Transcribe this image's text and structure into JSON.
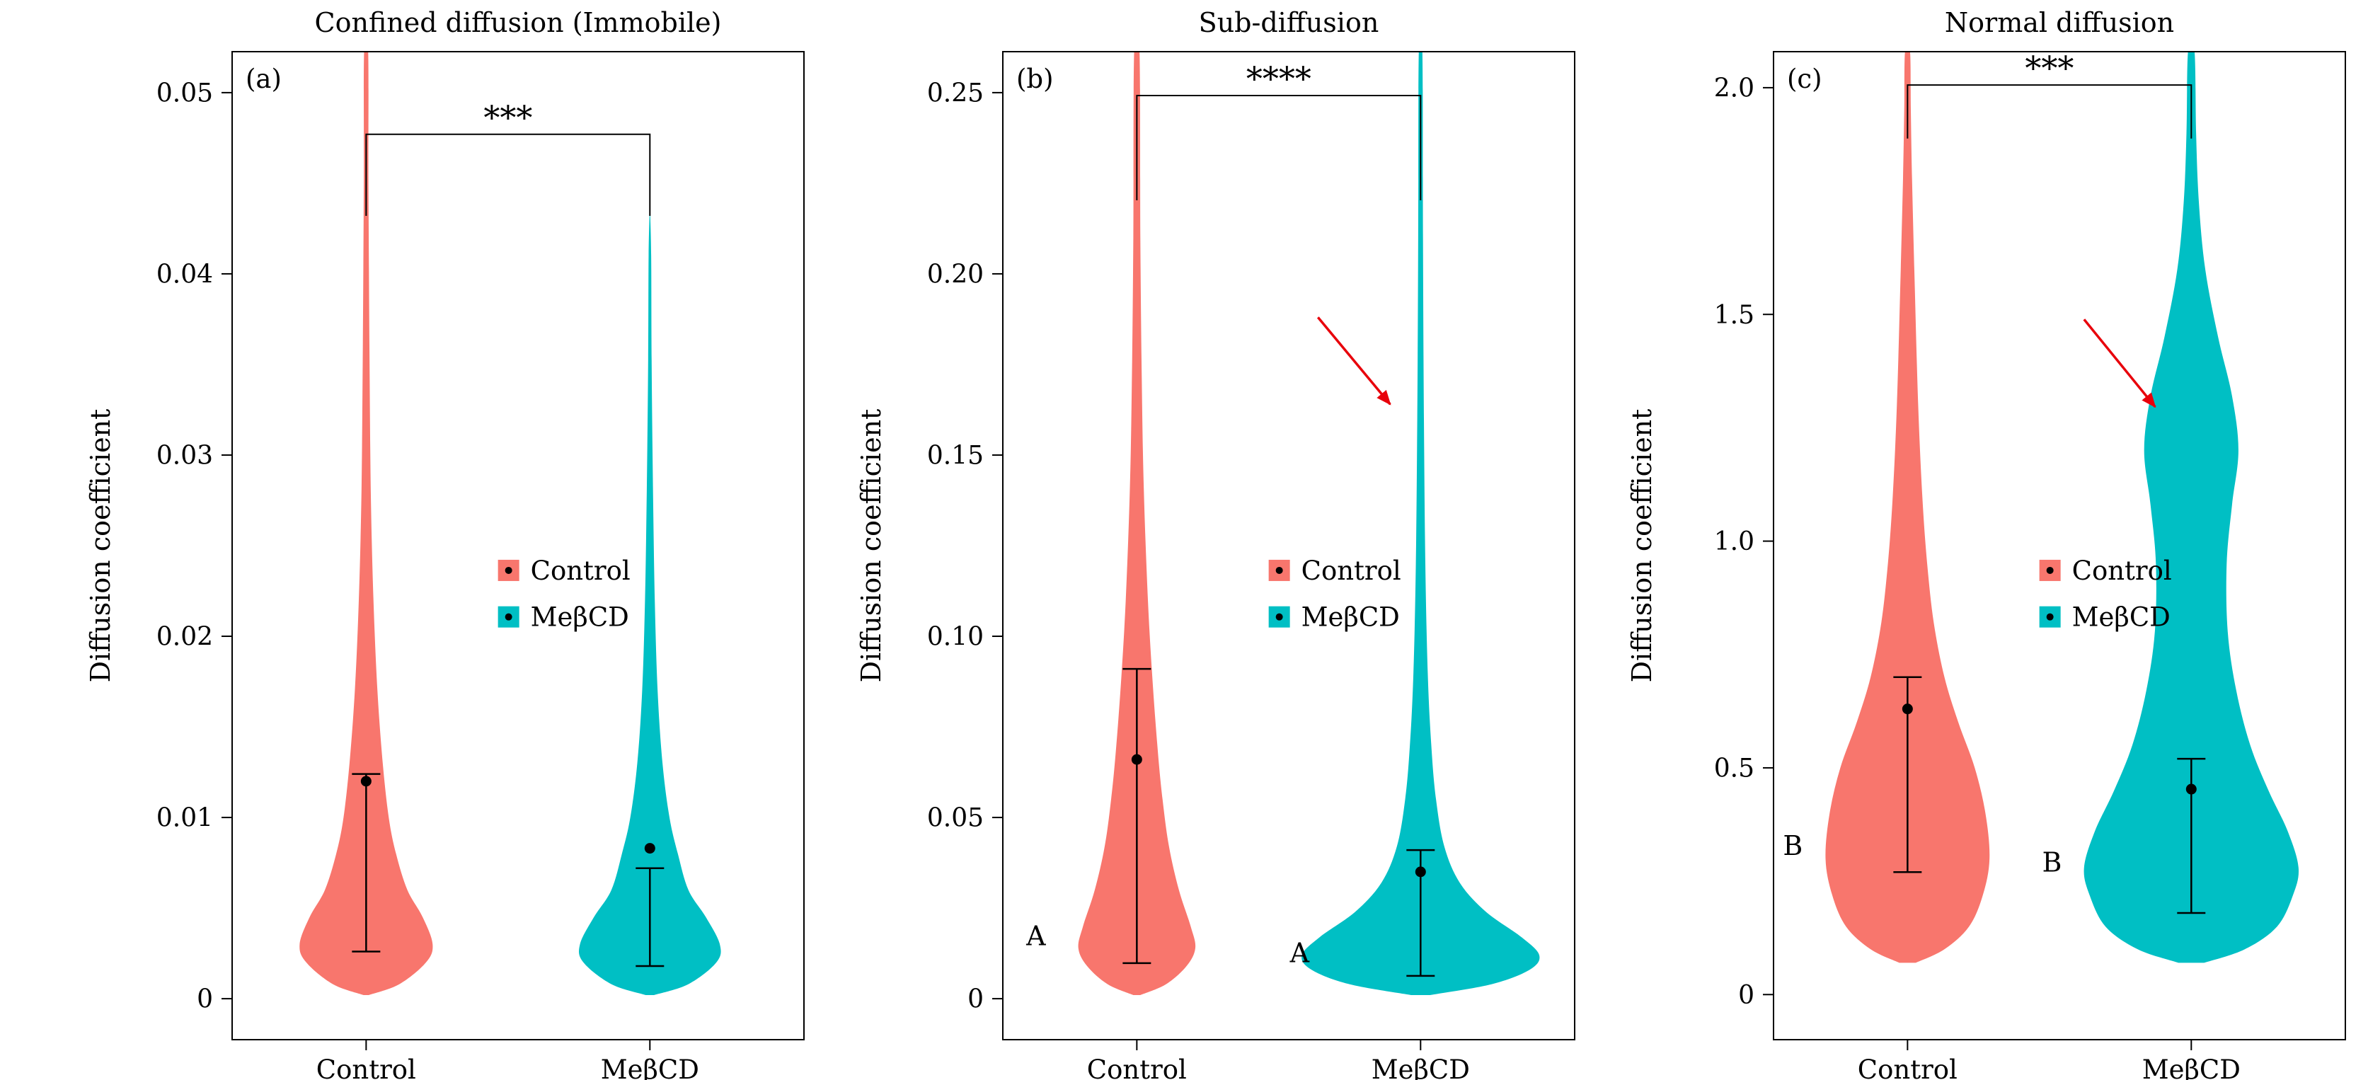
{
  "figure": {
    "background": "#ffffff",
    "accent_colors": {
      "control": "#F8766D",
      "mebcd": "#00BFC4",
      "arrow": "#E8000B"
    }
  },
  "chart_data": [
    {
      "type": "violin",
      "panel_tag": "(a)",
      "title": "Confined diffusion (Immobile)",
      "ylabel": "Diffusion coefficient",
      "ylim": [
        -0.0023,
        0.0523
      ],
      "yticks": [
        {
          "v": 0,
          "label": "0"
        },
        {
          "v": 0.01,
          "label": "0.01"
        },
        {
          "v": 0.02,
          "label": "0.02"
        },
        {
          "v": 0.03,
          "label": "0.03"
        },
        {
          "v": 0.04,
          "label": "0.04"
        },
        {
          "v": 0.05,
          "label": "0.05"
        }
      ],
      "categories": [
        "Control",
        "MeβCD"
      ],
      "category_x": [
        0.235,
        0.73
      ],
      "significance": {
        "label": "***",
        "bar_y": 0.0477,
        "drop_to": [
          0.0432,
          0.0432
        ]
      },
      "legend": {
        "x": 0.465,
        "rows": [
          0.525,
          0.572
        ],
        "items": [
          {
            "label": "Control",
            "color": "#F8766D"
          },
          {
            "label": "MeβCD",
            "color": "#00BFC4"
          }
        ]
      },
      "annotations": [],
      "arrow": null,
      "series": [
        {
          "name": "control",
          "label": "Control",
          "color": "#F8766D",
          "center": 0.235,
          "max_halfwidth": 0.116,
          "mean": 0.012,
          "err": [
            0.0026,
            0.0124
          ],
          "profile": [
            [
              0.0002,
              0.04
            ],
            [
              0.0008,
              0.5
            ],
            [
              0.002,
              0.9
            ],
            [
              0.003,
              1.0
            ],
            [
              0.0045,
              0.85
            ],
            [
              0.006,
              0.62
            ],
            [
              0.008,
              0.45
            ],
            [
              0.01,
              0.34
            ],
            [
              0.013,
              0.25
            ],
            [
              0.017,
              0.17
            ],
            [
              0.022,
              0.11
            ],
            [
              0.028,
              0.07
            ],
            [
              0.036,
              0.05
            ],
            [
              0.045,
              0.035
            ],
            [
              0.0523,
              0.03
            ]
          ]
        },
        {
          "name": "mebcd",
          "label": "MeβCD",
          "color": "#00BFC4",
          "center": 0.73,
          "max_halfwidth": 0.122,
          "mean": 0.0083,
          "err": [
            0.0018,
            0.0072
          ],
          "profile": [
            [
              0.0002,
              0.06
            ],
            [
              0.0008,
              0.55
            ],
            [
              0.002,
              0.95
            ],
            [
              0.003,
              1.0
            ],
            [
              0.0045,
              0.8
            ],
            [
              0.006,
              0.55
            ],
            [
              0.008,
              0.4
            ],
            [
              0.01,
              0.28
            ],
            [
              0.013,
              0.18
            ],
            [
              0.017,
              0.11
            ],
            [
              0.022,
              0.07
            ],
            [
              0.028,
              0.045
            ],
            [
              0.035,
              0.025
            ],
            [
              0.041,
              0.012
            ],
            [
              0.0438,
              0
            ]
          ]
        }
      ]
    },
    {
      "type": "violin",
      "panel_tag": "(b)",
      "title": "Sub-diffusion",
      "ylabel": "Diffusion coefficient",
      "ylim": [
        -0.0115,
        0.2615
      ],
      "yticks": [
        {
          "v": 0,
          "label": "0"
        },
        {
          "v": 0.05,
          "label": "0.05"
        },
        {
          "v": 0.1,
          "label": "0.10"
        },
        {
          "v": 0.15,
          "label": "0.15"
        },
        {
          "v": 0.2,
          "label": "0.20"
        },
        {
          "v": 0.25,
          "label": "0.25"
        }
      ],
      "categories": [
        "Control",
        "MeβCD"
      ],
      "category_x": [
        0.235,
        0.73
      ],
      "significance": {
        "label": "****",
        "bar_y": 0.2492,
        "drop_to": [
          0.2203,
          0.2203
        ]
      },
      "legend": {
        "x": 0.465,
        "rows": [
          0.525,
          0.572
        ],
        "items": [
          {
            "label": "Control",
            "color": "#F8766D"
          },
          {
            "label": "MeβCD",
            "color": "#00BFC4"
          }
        ]
      },
      "annotations": [
        {
          "text": "A",
          "x": 0.059,
          "y": 0.0174
        },
        {
          "text": "A",
          "x": 0.519,
          "y": 0.0127
        }
      ],
      "arrow": {
        "from": [
          0.551,
          0.188
        ],
        "to": [
          0.677,
          0.164
        ],
        "color": "#E8000B"
      },
      "series": [
        {
          "name": "control",
          "label": "Control",
          "color": "#F8766D",
          "center": 0.235,
          "max_halfwidth": 0.102,
          "mean": 0.066,
          "err": [
            0.0098,
            0.091
          ],
          "profile": [
            [
              0.001,
              0.06
            ],
            [
              0.004,
              0.5
            ],
            [
              0.009,
              0.85
            ],
            [
              0.014,
              1.0
            ],
            [
              0.02,
              0.92
            ],
            [
              0.03,
              0.72
            ],
            [
              0.042,
              0.55
            ],
            [
              0.055,
              0.44
            ],
            [
              0.07,
              0.35
            ],
            [
              0.09,
              0.26
            ],
            [
              0.11,
              0.19
            ],
            [
              0.14,
              0.12
            ],
            [
              0.17,
              0.085
            ],
            [
              0.21,
              0.06
            ],
            [
              0.2615,
              0.045
            ]
          ]
        },
        {
          "name": "mebcd",
          "label": "MeβCD",
          "color": "#00BFC4",
          "center": 0.73,
          "max_halfwidth": 0.207,
          "mean": 0.035,
          "err": [
            0.0063,
            0.041
          ],
          "profile": [
            [
              0.001,
              0.08
            ],
            [
              0.004,
              0.6
            ],
            [
              0.008,
              0.92
            ],
            [
              0.012,
              1.0
            ],
            [
              0.017,
              0.85
            ],
            [
              0.024,
              0.55
            ],
            [
              0.032,
              0.33
            ],
            [
              0.042,
              0.2
            ],
            [
              0.055,
              0.13
            ],
            [
              0.07,
              0.09
            ],
            [
              0.09,
              0.06
            ],
            [
              0.12,
              0.04
            ],
            [
              0.16,
              0.028
            ],
            [
              0.21,
              0.02
            ],
            [
              0.2615,
              0.015
            ]
          ]
        }
      ]
    },
    {
      "type": "violin",
      "panel_tag": "(c)",
      "title": "Normal diffusion",
      "ylabel": "Diffusion coefficient",
      "ylim": [
        -0.101,
        2.081
      ],
      "yticks": [
        {
          "v": 0,
          "label": "0"
        },
        {
          "v": 0.5,
          "label": "0.5"
        },
        {
          "v": 1.0,
          "label": "1.0"
        },
        {
          "v": 1.5,
          "label": "1.5"
        },
        {
          "v": 2.0,
          "label": "2.0"
        }
      ],
      "categories": [
        "Control",
        "MeβCD"
      ],
      "category_x": [
        0.235,
        0.73
      ],
      "significance": {
        "label": "***",
        "bar_y": 2.006,
        "drop_to": [
          1.888,
          1.888
        ]
      },
      "legend": {
        "x": 0.465,
        "rows": [
          0.525,
          0.572
        ],
        "items": [
          {
            "label": "Control",
            "color": "#F8766D"
          },
          {
            "label": "MeβCD",
            "color": "#00BFC4"
          }
        ]
      },
      "annotations": [
        {
          "text": "B",
          "x": 0.035,
          "y": 0.329
        },
        {
          "text": "B",
          "x": 0.487,
          "y": 0.292
        }
      ],
      "arrow": {
        "from": [
          0.543,
          1.489
        ],
        "to": [
          0.667,
          1.296
        ],
        "color": "#E8000B"
      },
      "series": [
        {
          "name": "control",
          "label": "Control",
          "color": "#F8766D",
          "center": 0.235,
          "max_halfwidth": 0.143,
          "mean": 0.63,
          "err": [
            0.27,
            0.7
          ],
          "profile": [
            [
              0.07,
              0.1
            ],
            [
              0.1,
              0.45
            ],
            [
              0.15,
              0.75
            ],
            [
              0.22,
              0.92
            ],
            [
              0.3,
              1.0
            ],
            [
              0.4,
              0.95
            ],
            [
              0.5,
              0.82
            ],
            [
              0.6,
              0.62
            ],
            [
              0.7,
              0.45
            ],
            [
              0.82,
              0.32
            ],
            [
              0.95,
              0.24
            ],
            [
              1.1,
              0.18
            ],
            [
              1.3,
              0.13
            ],
            [
              1.55,
              0.09
            ],
            [
              1.8,
              0.055
            ],
            [
              1.95,
              0.04
            ],
            [
              2.081,
              0.03
            ]
          ]
        },
        {
          "name": "mebcd",
          "label": "MeβCD",
          "color": "#00BFC4",
          "center": 0.73,
          "max_halfwidth": 0.187,
          "mean": 0.453,
          "err": [
            0.18,
            0.52
          ],
          "profile": [
            [
              0.07,
              0.12
            ],
            [
              0.1,
              0.5
            ],
            [
              0.15,
              0.8
            ],
            [
              0.22,
              0.95
            ],
            [
              0.28,
              1.0
            ],
            [
              0.36,
              0.9
            ],
            [
              0.45,
              0.72
            ],
            [
              0.55,
              0.55
            ],
            [
              0.67,
              0.42
            ],
            [
              0.8,
              0.34
            ],
            [
              0.95,
              0.33
            ],
            [
              1.08,
              0.38
            ],
            [
              1.2,
              0.44
            ],
            [
              1.32,
              0.38
            ],
            [
              1.45,
              0.25
            ],
            [
              1.6,
              0.13
            ],
            [
              1.75,
              0.07
            ],
            [
              1.9,
              0.045
            ],
            [
              2.081,
              0.03
            ]
          ]
        }
      ]
    }
  ]
}
